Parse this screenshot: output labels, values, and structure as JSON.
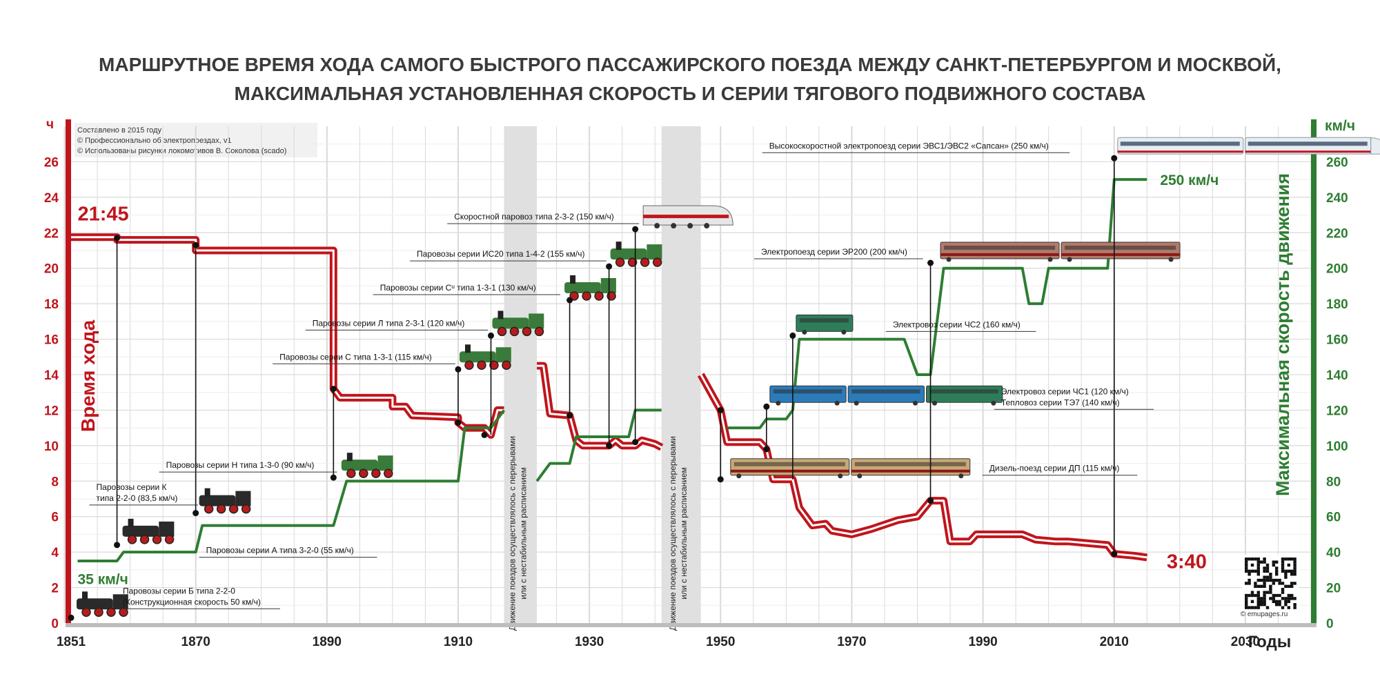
{
  "title_line1": "МАРШРУТНОЕ ВРЕМЯ ХОДА САМОГО БЫСТРОГО ПАССАЖИРСКОГО ПОЕЗДА МЕЖДУ САНКТ-ПЕТЕРБУРГОМ И МОСКВОЙ,",
  "title_line2": "МАКСИМАЛЬНАЯ УСТАНОВЛЕННАЯ СКОРОСТЬ И СЕРИИ ТЯГОВОГО ПОДВИЖНОГО СОСТАВА",
  "credits": [
    "Составлено в 2015 году",
    "© Профессионально об электропоездах, v1",
    "© Использованы рисунки локомотивов В. Соколова (scado)"
  ],
  "colors": {
    "time": "#c0151c",
    "speed": "#2e7d32",
    "grid": "#d9d9d9",
    "axis": "#bdbdbd",
    "gap": "#e0e0e0"
  },
  "chart_data": {
    "type": "line",
    "title": "МАРШРУТНОЕ ВРЕМЯ ХОДА САМОГО БЫСТРОГО ПАССАЖИРСКОГО ПОЕЗДА МЕЖДУ САНКТ-ПЕТЕРБУРГОМ И МОСКВОЙ, МАКСИМАЛЬНАЯ УСТАНОВЛЕННАЯ СКОРОСТЬ И СЕРИИ ТЯГОВОГО ПОДВИЖНОГО СОСТАВА",
    "xlabel": "Годы",
    "ylabel_left": "Время хода",
    "ylabel_right": "Максимальная скорость движения",
    "unit_left": "ч",
    "unit_right": "км/ч",
    "xlim": [
      1851,
      2040
    ],
    "ylim_left": [
      0,
      28
    ],
    "ylim_right": [
      0,
      280
    ],
    "x_ticks": [
      1851,
      1870,
      1890,
      1910,
      1930,
      1950,
      1970,
      1990,
      2010,
      2030
    ],
    "y_ticks_left": [
      0,
      2,
      4,
      6,
      8,
      10,
      12,
      14,
      16,
      18,
      20,
      22,
      24,
      26
    ],
    "y_ticks_right": [
      0,
      20,
      40,
      60,
      80,
      100,
      120,
      140,
      160,
      180,
      200,
      220,
      240,
      260
    ],
    "grid": true,
    "series": [
      {
        "name": "Время хода",
        "axis": "left",
        "segments": [
          [
            [
              1851,
              21.75
            ],
            [
              1858,
              21.75
            ],
            [
              1858,
              21.6
            ],
            [
              1870,
              21.6
            ],
            [
              1870,
              21
            ],
            [
              1891,
              21
            ],
            [
              1891,
              13.2
            ],
            [
              1892,
              12.7
            ],
            [
              1900,
              12.7
            ],
            [
              1900,
              12.2
            ],
            [
              1902,
              12.2
            ],
            [
              1903,
              11.7
            ],
            [
              1910,
              11.6
            ],
            [
              1910,
              11.3
            ],
            [
              1911,
              11
            ],
            [
              1914,
              11
            ],
            [
              1915,
              10.6
            ],
            [
              1916,
              12
            ],
            [
              1917,
              12
            ]
          ],
          [
            [
              1922,
              14.5
            ],
            [
              1923,
              14.5
            ],
            [
              1924,
              11.8
            ],
            [
              1927,
              11.7
            ],
            [
              1928,
              10.3
            ],
            [
              1929,
              10
            ],
            [
              1933,
              10
            ],
            [
              1934,
              10.3
            ],
            [
              1935,
              10
            ],
            [
              1937,
              10
            ],
            [
              1938,
              10.3
            ],
            [
              1940,
              10.1
            ],
            [
              1941,
              9.9
            ]
          ],
          [
            [
              1947,
              14
            ],
            [
              1950,
              12
            ],
            [
              1951,
              10.2
            ],
            [
              1956,
              10.2
            ],
            [
              1957,
              9.8
            ],
            [
              1958,
              8.1
            ],
            [
              1961,
              8.1
            ],
            [
              1962,
              6.5
            ],
            [
              1964,
              5.5
            ],
            [
              1966,
              5.6
            ],
            [
              1967,
              5.2
            ],
            [
              1970,
              5
            ],
            [
              1973,
              5.3
            ],
            [
              1977,
              5.8
            ],
            [
              1980,
              6
            ],
            [
              1982,
              6.9
            ],
            [
              1984,
              6.9
            ],
            [
              1985,
              4.6
            ],
            [
              1988,
              4.6
            ],
            [
              1989,
              5
            ],
            [
              1996,
              5
            ],
            [
              1998,
              4.7
            ],
            [
              2001,
              4.6
            ],
            [
              2003,
              4.6
            ],
            [
              2009,
              4.4
            ],
            [
              2010,
              3.9
            ],
            [
              2013,
              3.8
            ],
            [
              2015,
              3.7
            ]
          ]
        ]
      },
      {
        "name": "Максимальная скорость",
        "axis": "right",
        "segments": [
          [
            [
              1852,
              35
            ],
            [
              1858,
              35
            ],
            [
              1859,
              40
            ],
            [
              1870,
              40
            ],
            [
              1871,
              55
            ],
            [
              1891,
              55
            ],
            [
              1893,
              80
            ],
            [
              1910,
              80
            ],
            [
              1911,
              110
            ],
            [
              1915,
              110
            ],
            [
              1916,
              115
            ],
            [
              1917,
              120
            ]
          ],
          [
            [
              1922,
              80
            ],
            [
              1924,
              90
            ],
            [
              1927,
              90
            ],
            [
              1928,
              105
            ],
            [
              1936,
              105
            ],
            [
              1937,
              120
            ],
            [
              1941,
              120
            ]
          ],
          [
            [
              1951,
              110
            ],
            [
              1956,
              110
            ],
            [
              1957,
              115
            ],
            [
              1960,
              115
            ],
            [
              1961,
              120
            ],
            [
              1962,
              160
            ],
            [
              1978,
              160
            ],
            [
              1980,
              140
            ],
            [
              1982,
              140
            ],
            [
              1984,
              200
            ],
            [
              1996,
              200
            ],
            [
              1997,
              180
            ],
            [
              1999,
              180
            ],
            [
              2000,
              200
            ],
            [
              2009,
              200
            ],
            [
              2010,
              250
            ],
            [
              2015,
              250
            ]
          ]
        ]
      }
    ],
    "gaps": [
      [
        1917,
        1922
      ],
      [
        1941,
        1947
      ]
    ],
    "gap_label": "Движение поездов осуществлялось с перерывами или с нестабильным расписанием",
    "annotations": {
      "start_time": "21:45",
      "end_time": "3:40",
      "start_speed": "35 км/ч",
      "end_speed": "250 км/ч"
    },
    "vehicles": [
      {
        "year": 1851,
        "time": 0.3,
        "label": "Паровозы серии Б типа 2-2-0",
        "label2": "(Конструкционная скорость 50 км/ч)",
        "color": "#2a2a2a",
        "cars": 1,
        "kind": "steam"
      },
      {
        "year": 1858,
        "time": 4.4,
        "label": "Паровозы серии К",
        "label2": "типа 2-2-0 (83,5 км/ч)",
        "color": "#2a2a2a",
        "cars": 1,
        "kind": "steam"
      },
      {
        "year": 1870,
        "time": 6.2,
        "label": "Паровозы серии А типа 3-2-0 (55 км/ч)",
        "label2": "",
        "color": "#2a2a2a",
        "cars": 1,
        "kind": "steam"
      },
      {
        "year": 1892,
        "time": 8.2,
        "label": "Паровозы серии Н типа 1-3-0 (90 км/ч)",
        "label2": "",
        "color": "#3a7a3a",
        "cars": 1,
        "kind": "steam"
      },
      {
        "year": 1910,
        "time": 14.3,
        "label": "Паровозы серии С типа 1-3-1 (115 км/ч)",
        "label2": "",
        "color": "#3a7a3a",
        "cars": 1,
        "kind": "steam"
      },
      {
        "year": 1915,
        "time": 16.2,
        "label": "Паровозы серии Л типа 2-3-1 (120 км/ч)",
        "label2": "",
        "color": "#3a7a3a",
        "cars": 1,
        "kind": "steam"
      },
      {
        "year": 1926,
        "time": 18.2,
        "label": "Паровозы серии Сᵘ типа 1-3-1 (130 км/ч)",
        "label2": "",
        "color": "#3a7a3a",
        "cars": 1,
        "kind": "steam"
      },
      {
        "year": 1933,
        "time": 20.1,
        "label": "Паровозы серии ИС20 типа 1-4-2 (155 км/ч)",
        "label2": "",
        "color": "#3a7a3a",
        "cars": 1,
        "kind": "steam"
      },
      {
        "year": 1938,
        "time": 22.2,
        "label": "Скоростной паровоз типа 2-3-2 (150 км/ч)",
        "label2": "",
        "color": "#e6e6e6",
        "cars": 1,
        "kind": "streamline"
      },
      {
        "year": 1951,
        "time": 8.1,
        "label": "Дизель-поезд серии ДП (115 км/ч)",
        "label2": "",
        "color": "#c9a874",
        "cars": 2,
        "kind": "emu"
      },
      {
        "year": 1957,
        "time": 12.2,
        "label": "Электровоз серии ЧС1   (120 км/ч)",
        "label2": "Тепловоз серии ТЭ7   (140 км/ч)",
        "color": "#2b7bb9",
        "cars": 3,
        "kind": "loco"
      },
      {
        "year": 1961,
        "time": 16.2,
        "label": "Электровоз серии ЧС2 (160 км/ч)",
        "label2": "",
        "color": "#2e7d5a",
        "cars": 1,
        "kind": "loco"
      },
      {
        "year": 1983,
        "time": 20.3,
        "label": "Электропоезд серии ЭР200 (200 км/ч)",
        "label2": "",
        "color": "#b07a6a",
        "cars": 2,
        "kind": "emu"
      },
      {
        "year": 2010,
        "time": 26.2,
        "label": "Высокоскоростной электропоезд серии ЭВС1/ЭВС2 «Сапсан» (250 км/ч)",
        "label2": "",
        "color": "#e8edf2",
        "cars": 2,
        "kind": "sapsan"
      }
    ],
    "markers": [
      {
        "year": 1851,
        "time": 0.3
      },
      {
        "year": 1858,
        "time": 4.4
      },
      {
        "year": 1858,
        "time": 21.7
      },
      {
        "year": 1870,
        "time": 6.2
      },
      {
        "year": 1870,
        "time": 21.3
      },
      {
        "year": 1891,
        "time": 8.2
      },
      {
        "year": 1891,
        "time": 13.2
      },
      {
        "year": 1910,
        "time": 11.3
      },
      {
        "year": 1910,
        "time": 14.3
      },
      {
        "year": 1914,
        "time": 10.6
      },
      {
        "year": 1915,
        "time": 16.2
      },
      {
        "year": 1927,
        "time": 11.7
      },
      {
        "year": 1927,
        "time": 18.2
      },
      {
        "year": 1933,
        "time": 10
      },
      {
        "year": 1933,
        "time": 20.1
      },
      {
        "year": 1937,
        "time": 10.2
      },
      {
        "year": 1937,
        "time": 22.2
      },
      {
        "year": 1950,
        "time": 12
      },
      {
        "year": 1950,
        "time": 8.1
      },
      {
        "year": 1957,
        "time": 9.8
      },
      {
        "year": 1957,
        "time": 12.2
      },
      {
        "year": 1961,
        "time": 16.2
      },
      {
        "year": 1982,
        "time": 6.9
      },
      {
        "year": 1982,
        "time": 20.3
      },
      {
        "year": 2010,
        "time": 3.9
      },
      {
        "year": 2010,
        "time": 26.2
      }
    ]
  },
  "qr_caption": "© emupages.ru"
}
